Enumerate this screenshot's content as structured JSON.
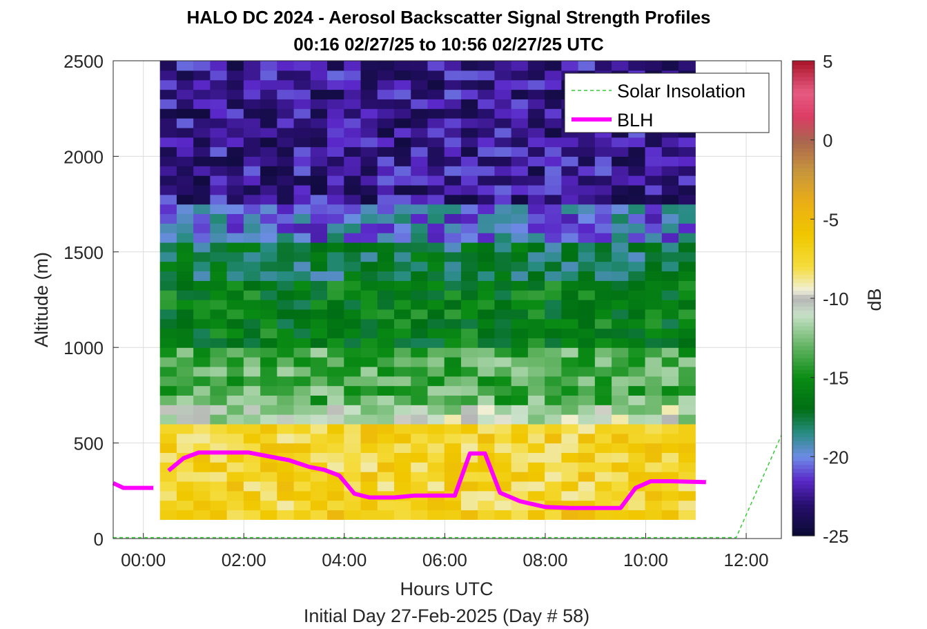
{
  "colors": {
    "blh": "#ff00ff",
    "solar": "#33cc33",
    "grid": "#dcdcdc",
    "axis": "#262626"
  },
  "chart_data": {
    "type": "heatmap",
    "title": "HALO DC 2024 - Aerosol Backscatter Signal Strength Profiles",
    "subtitle": "00:16 02/27/25 to 10:56 02/27/25  UTC",
    "xlabel": "Hours UTC",
    "xlabel2": "Initial Day 27-Feb-2025 (Day # 58)",
    "ylabel": "Altitude (m)",
    "colorbar_label": "dB",
    "xlim": [
      -0.6,
      12.7
    ],
    "ylim": [
      0,
      2500
    ],
    "clim": [
      -25,
      5
    ],
    "x_ticks": [
      0,
      2,
      4,
      6,
      8,
      10,
      12
    ],
    "x_tick_labels": [
      "00:00",
      "02:00",
      "04:00",
      "06:00",
      "08:00",
      "10:00",
      "12:00"
    ],
    "y_ticks": [
      0,
      500,
      1000,
      1500,
      2000,
      2500
    ],
    "y_tick_labels": [
      "0",
      "500",
      "1000",
      "1500",
      "2000",
      "2500"
    ],
    "colorbar_ticks": [
      5,
      0,
      -5,
      -10,
      -15,
      -20,
      -25
    ],
    "colorbar_tick_labels": [
      "5",
      "0",
      "-5",
      "-10",
      "-15",
      "-20",
      "-25"
    ],
    "grid": true,
    "legend": {
      "placement": "top-right",
      "entries": [
        "Solar Insolation",
        "BLH"
      ]
    },
    "heatmap": {
      "x_start": 0.33,
      "x_step": 0.333,
      "y_start": 100,
      "y_step": 50,
      "row_profiles_db": [
        {
          "y_to": 150,
          "db": -6.5
        },
        {
          "y_to": 600,
          "db": -7.0
        },
        {
          "y_to": 700,
          "db": -11.0
        },
        {
          "y_to": 1000,
          "db": -13.5
        },
        {
          "y_to": 1350,
          "db": -16.0
        },
        {
          "y_to": 1550,
          "db": -17.5
        },
        {
          "y_to": 1750,
          "db": -20.0
        },
        {
          "y_to": 2500,
          "db": -22.5
        }
      ],
      "columns": 32
    },
    "series": [
      {
        "name": "BLH",
        "x": [
          -0.6,
          -0.4,
          0.2,
          null,
          0.5,
          0.8,
          1.1,
          1.5,
          2.1,
          2.5,
          2.9,
          3.3,
          3.6,
          3.9,
          4.2,
          4.5,
          5.0,
          5.4,
          5.7,
          6.2,
          6.5,
          6.8,
          7.1,
          7.5,
          8.0,
          8.5,
          9.0,
          9.5,
          9.8,
          10.1,
          10.5,
          11.2
        ],
        "y": [
          290,
          265,
          265,
          null,
          355,
          420,
          450,
          450,
          450,
          430,
          410,
          375,
          360,
          330,
          235,
          215,
          215,
          225,
          225,
          225,
          445,
          445,
          240,
          195,
          165,
          160,
          160,
          160,
          265,
          300,
          300,
          295
        ]
      },
      {
        "name": "Solar Insolation",
        "x": [
          -0.6,
          11.8,
          12.7
        ],
        "y": [
          5,
          5,
          540
        ]
      }
    ]
  }
}
